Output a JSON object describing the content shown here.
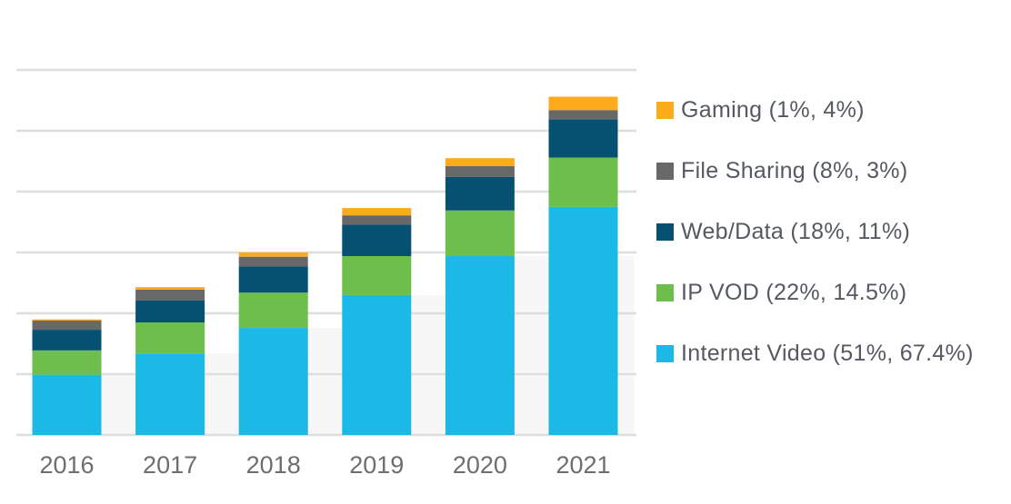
{
  "chart_data": {
    "type": "bar",
    "stacked": true,
    "title": "",
    "xlabel": "",
    "ylabel": "",
    "y_unit_note": "y-axis unlabeled; values in gridline intervals",
    "ylim": [
      0,
      6
    ],
    "grid": true,
    "legend_position": "right",
    "categories": [
      "2016",
      "2017",
      "2018",
      "2019",
      "2020",
      "2021"
    ],
    "series": [
      {
        "name": "Internet Video",
        "label": "Internet Video (51%, 67.4%)",
        "color": "#1bb9e6",
        "values": [
          0.99,
          1.34,
          1.76,
          2.3,
          2.94,
          3.75
        ]
      },
      {
        "name": "IP VOD",
        "label": "IP VOD (22%, 14.5%)",
        "color": "#6dbe4a",
        "values": [
          0.4,
          0.51,
          0.58,
          0.64,
          0.75,
          0.81
        ]
      },
      {
        "name": "Web/Data",
        "label": "Web/Data (18%, 11%)",
        "color": "#065072",
        "values": [
          0.34,
          0.36,
          0.43,
          0.52,
          0.55,
          0.63
        ]
      },
      {
        "name": "File Sharing",
        "label": "File Sharing (8%, 3%)",
        "color": "#686868",
        "values": [
          0.15,
          0.18,
          0.16,
          0.15,
          0.18,
          0.15
        ]
      },
      {
        "name": "Gaming",
        "label": "Gaming (1%, 4%)",
        "color": "#fbab1c",
        "values": [
          0.02,
          0.04,
          0.07,
          0.12,
          0.13,
          0.22
        ]
      }
    ],
    "legend_order": [
      "Gaming",
      "File Sharing",
      "Web/Data",
      "IP VOD",
      "Internet Video"
    ]
  }
}
